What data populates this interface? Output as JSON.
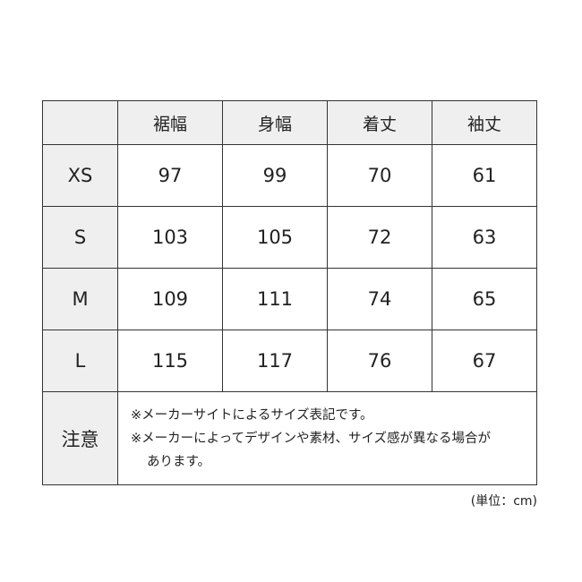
{
  "headers": [
    "",
    "裾幅",
    "身幅",
    "着丈",
    "袖丈"
  ],
  "rows": [
    {
      "size": "XS",
      "values": [
        "97",
        "99",
        "70",
        "61"
      ]
    },
    {
      "size": "S",
      "values": [
        "103",
        "105",
        "72",
        "63"
      ]
    },
    {
      "size": "M",
      "values": [
        "109",
        "111",
        "74",
        "65"
      ]
    },
    {
      "size": "L",
      "values": [
        "115",
        "117",
        "76",
        "67"
      ]
    }
  ],
  "note": {
    "label": "注意",
    "line1": "※メーカーサイトによるサイズ表記です。",
    "line2": "※メーカーによってデザインや素材、サイズ感が異なる場合が",
    "line3": "あります。"
  },
  "unit": "(単位：cm)",
  "colors": {
    "header_bg": "#efefef",
    "border": "#333333"
  }
}
